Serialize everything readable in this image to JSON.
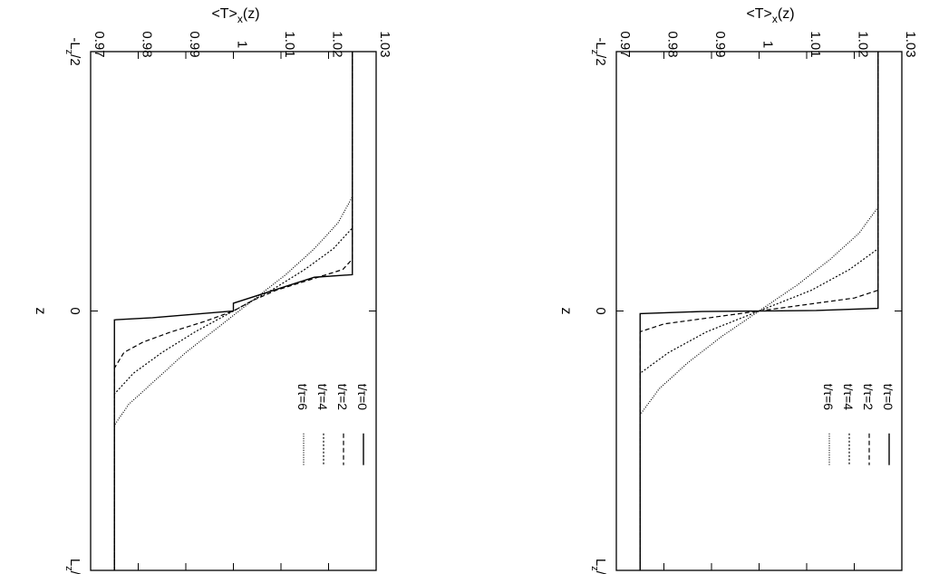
{
  "chart_data": [
    {
      "type": "line",
      "panel": "left",
      "title": "",
      "xlabel": "z",
      "ylabel": "<T>x(z)",
      "ylabel_main": "<T>",
      "ylabel_sub": "x",
      "ylabel_tail": "(z)",
      "rotated": "90deg-clockwise",
      "x_ticks": [
        {
          "pos": -0.5,
          "main": "-L",
          "sub": "z",
          "tail": "/2"
        },
        {
          "pos": 0,
          "main": "0",
          "sub": "",
          "tail": ""
        },
        {
          "pos": 0.5,
          "main": "L",
          "sub": "z",
          "tail": "/2"
        }
      ],
      "xlim": [
        -0.5,
        0.5
      ],
      "y_ticks": [
        "0.97",
        "0.98",
        "0.99",
        "1",
        "1.01",
        "1.02",
        "1.03"
      ],
      "ylim": [
        0.97,
        1.03
      ],
      "legend_position": "bottom-right",
      "grid": false,
      "series": [
        {
          "name": "t/τ=0",
          "style": "solid",
          "x": [
            -0.5,
            -0.07,
            -0.065,
            -0.015,
            0.0,
            0.013,
            0.017,
            0.25,
            0.5
          ],
          "y": [
            1.025,
            1.025,
            1.017,
            1.0,
            1.0,
            0.983,
            0.975,
            0.975,
            0.975
          ]
        },
        {
          "name": "t/τ=2",
          "style": "dashed",
          "x": [
            -0.5,
            -0.1,
            -0.08,
            -0.06,
            -0.04,
            -0.02,
            0.0,
            0.02,
            0.04,
            0.06,
            0.08,
            0.11,
            0.5
          ],
          "y": [
            1.025,
            1.025,
            1.023,
            1.016,
            1.009,
            1.004,
            1.0,
            0.994,
            0.987,
            0.981,
            0.977,
            0.975,
            0.975
          ]
        },
        {
          "name": "t/τ=4",
          "style": "dotted",
          "x": [
            -0.5,
            -0.16,
            -0.12,
            -0.08,
            -0.04,
            0.0,
            0.04,
            0.08,
            0.12,
            0.16,
            0.5
          ],
          "y": [
            1.025,
            1.025,
            1.021,
            1.015,
            1.008,
            1.0,
            0.992,
            0.985,
            0.979,
            0.975,
            0.975
          ]
        },
        {
          "name": "t/τ=6",
          "style": "fine-dotted",
          "x": [
            -0.5,
            -0.22,
            -0.17,
            -0.12,
            -0.07,
            -0.02,
            0.03,
            0.08,
            0.13,
            0.18,
            0.22,
            0.5
          ],
          "y": [
            1.025,
            1.025,
            1.022,
            1.017,
            1.011,
            1.004,
            0.997,
            0.99,
            0.984,
            0.978,
            0.975,
            0.975
          ]
        }
      ]
    },
    {
      "type": "line",
      "panel": "right",
      "title": "",
      "xlabel": "z",
      "ylabel": "<T>x(z)",
      "ylabel_main": "<T>",
      "ylabel_sub": "x",
      "ylabel_tail": "(z)",
      "rotated": "90deg-clockwise",
      "x_ticks": [
        {
          "pos": -0.5,
          "main": "-L",
          "sub": "z",
          "tail": "/2"
        },
        {
          "pos": 0,
          "main": "0",
          "sub": "",
          "tail": ""
        },
        {
          "pos": 0.5,
          "main": "L",
          "sub": "z",
          "tail": "/2"
        }
      ],
      "xlim": [
        -0.5,
        0.5
      ],
      "y_ticks": [
        "0.97",
        "0.98",
        "0.99",
        "1",
        "1.01",
        "1.02",
        "1.03"
      ],
      "ylim": [
        0.97,
        1.03
      ],
      "legend_position": "bottom-right",
      "grid": false,
      "series": [
        {
          "name": "t/τ=0",
          "style": "solid",
          "x": [
            -0.5,
            -0.005,
            -0.001,
            0.001,
            0.005,
            0.5
          ],
          "y": [
            1.025,
            1.025,
            1.012,
            0.988,
            0.975,
            0.975
          ]
        },
        {
          "name": "t/τ=2",
          "style": "dashed",
          "x": [
            -0.5,
            -0.04,
            -0.025,
            -0.01,
            0.0,
            0.01,
            0.025,
            0.04,
            0.5
          ],
          "y": [
            1.025,
            1.025,
            1.02,
            1.008,
            1.0,
            0.992,
            0.98,
            0.975,
            0.975
          ]
        },
        {
          "name": "t/τ=4",
          "style": "dotted",
          "x": [
            -0.5,
            -0.12,
            -0.08,
            -0.04,
            0.0,
            0.04,
            0.08,
            0.12,
            0.5
          ],
          "y": [
            1.025,
            1.025,
            1.019,
            1.011,
            1.0,
            0.989,
            0.981,
            0.975,
            0.975
          ]
        },
        {
          "name": "t/τ=6",
          "style": "fine-dotted",
          "x": [
            -0.5,
            -0.2,
            -0.15,
            -0.1,
            -0.05,
            0.0,
            0.05,
            0.1,
            0.15,
            0.2,
            0.5
          ],
          "y": [
            1.025,
            1.025,
            1.021,
            1.015,
            1.008,
            1.0,
            0.992,
            0.985,
            0.979,
            0.975,
            0.975
          ]
        }
      ]
    }
  ]
}
